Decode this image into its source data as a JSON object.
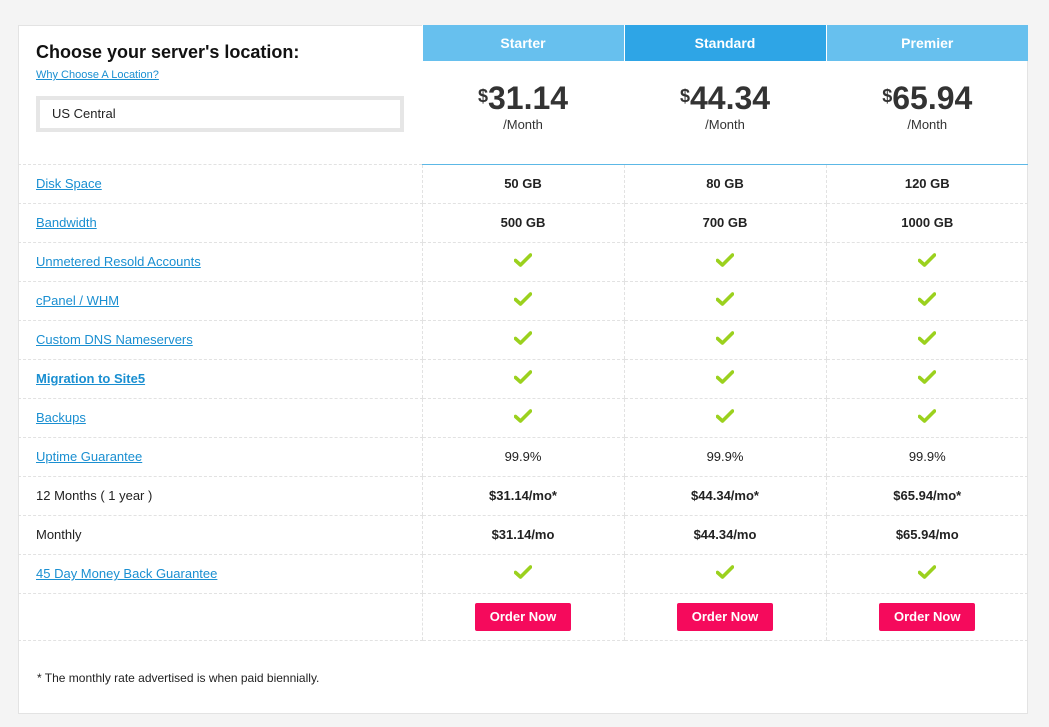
{
  "location": {
    "title": "Choose your server's location:",
    "why_link": "Why Choose A Location?",
    "selected": "US Central"
  },
  "plans": [
    {
      "name": "Starter",
      "currency": "$",
      "price": "31.14",
      "period": "/Month",
      "order_label": "Order Now"
    },
    {
      "name": "Standard",
      "currency": "$",
      "price": "44.34",
      "period": "/Month",
      "order_label": "Order Now"
    },
    {
      "name": "Premier",
      "currency": "$",
      "price": "65.94",
      "period": "/Month",
      "order_label": "Order Now"
    }
  ],
  "features": [
    {
      "label": "Disk Space",
      "link": true,
      "values": [
        "50 GB",
        "80 GB",
        "120 GB"
      ]
    },
    {
      "label": "Bandwidth",
      "link": true,
      "values": [
        "500 GB",
        "700 GB",
        "1000 GB"
      ]
    },
    {
      "label": "Unmetered Resold Accounts",
      "link": true,
      "check": true
    },
    {
      "label": "cPanel / WHM",
      "link": true,
      "check": true
    },
    {
      "label": "Custom DNS Nameservers",
      "link": true,
      "check": true
    },
    {
      "label": "Migration to Site5",
      "link": true,
      "bold": true,
      "check": true
    },
    {
      "label": "Backups",
      "link": true,
      "check": true
    },
    {
      "label": "Uptime Guarantee",
      "link": true,
      "normal": true,
      "values": [
        "99.9%",
        "99.9%",
        "99.9%"
      ]
    },
    {
      "label": "12 Months ( 1 year )",
      "link": false,
      "values": [
        "$31.14/mo*",
        "$44.34/mo*",
        "$65.94/mo*"
      ]
    },
    {
      "label": "Monthly",
      "link": false,
      "values": [
        "$31.14/mo",
        "$44.34/mo",
        "$65.94/mo"
      ]
    },
    {
      "label": "45 Day Money Back Guarantee",
      "link": true,
      "check": true
    }
  ],
  "check_color": "#9bd11e",
  "footnote": "* The monthly rate advertised is when paid biennially."
}
